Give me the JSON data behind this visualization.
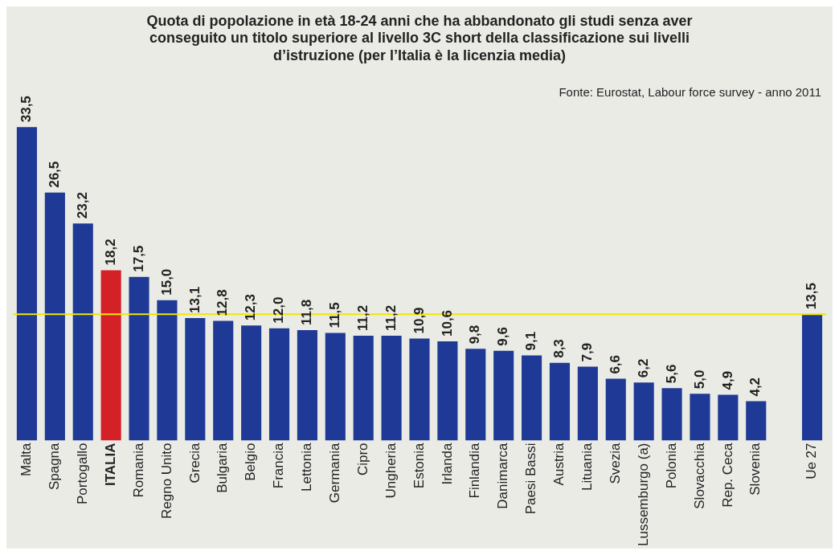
{
  "chart_data": {
    "type": "bar",
    "title": "Quota di popolazione in età 18-24 anni che ha abbandonato gli studi senza aver\nconseguito un titolo superiore al livello 3C short della classificazione sui livelli\nd’istruzione (per l’Italia è la licenzia media)",
    "annotations": [
      "Fonte: Eurostat, Labour force survey - anno 2011"
    ],
    "categories": [
      "Malta",
      "Spagna",
      "Portogallo",
      "ITALIA",
      "Romania",
      "Regno Unito",
      "Grecia",
      "Bulgaria",
      "Belgio",
      "Francia",
      "Lettonia",
      "Germania",
      "Cipro",
      "Ungheria",
      "Estonia",
      "Irlanda",
      "Finlandia",
      "Danimarca",
      "Paesi Bassi",
      "Austria",
      "Lituania",
      "Svezia",
      "Lussemburgo (a)",
      "Polonia",
      "Slovacchia",
      "Rep. Ceca",
      "Slovenia",
      null,
      "Ue 27"
    ],
    "values": [
      33.5,
      26.5,
      23.2,
      18.2,
      17.5,
      15.0,
      13.1,
      12.8,
      12.3,
      12.0,
      11.8,
      11.5,
      11.2,
      11.2,
      10.9,
      10.6,
      9.8,
      9.6,
      9.1,
      8.3,
      7.9,
      6.6,
      6.2,
      5.6,
      5.0,
      4.9,
      4.2,
      null,
      13.5
    ],
    "value_labels": [
      "33,5",
      "26,5",
      "23,2",
      "18,2",
      "17,5",
      "15,0",
      "13,1",
      "12,8",
      "12,3",
      "12,0",
      "11,8",
      "11,5",
      "11,2",
      "11,2",
      "10,9",
      "10,6",
      "9,8",
      "9,6",
      "9,1",
      "8,3",
      "7,9",
      "6,6",
      "6,2",
      "5,6",
      "5,0",
      "4,9",
      "4,2",
      null,
      "13,5"
    ],
    "color": "#1f3a96",
    "colors": [
      "#1f3a96",
      "#1f3a96",
      "#1f3a96",
      "#d42027",
      "#1f3a96",
      "#1f3a96",
      "#1f3a96",
      "#1f3a96",
      "#1f3a96",
      "#1f3a96",
      "#1f3a96",
      "#1f3a96",
      "#1f3a96",
      "#1f3a96",
      "#1f3a96",
      "#1f3a96",
      "#1f3a96",
      "#1f3a96",
      "#1f3a96",
      "#1f3a96",
      "#1f3a96",
      "#1f3a96",
      "#1f3a96",
      "#1f3a96",
      "#1f3a96",
      "#1f3a96",
      "#1f3a96",
      "#1f3a96",
      "#1f3a96"
    ],
    "ref_lines": [
      {
        "axis": "y",
        "value": 13.5,
        "color": "#f2e600"
      }
    ],
    "grid": false,
    "legend": false,
    "tick_labels": "x"
  }
}
